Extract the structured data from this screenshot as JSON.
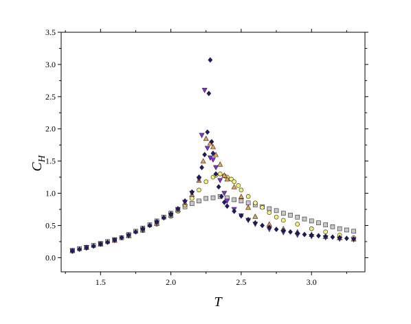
{
  "chart_data": {
    "type": "scatter",
    "title": "",
    "xlabel": "T",
    "ylabel_main": "C",
    "ylabel_sub": "H",
    "xlim": [
      1.22,
      3.38
    ],
    "ylim": [
      -0.22,
      3.5
    ],
    "xticks": [
      1.5,
      2.0,
      2.5,
      3.0
    ],
    "xtick_labels": [
      "1.5",
      "2.0",
      "2.5",
      "3.0"
    ],
    "yticks": [
      0.0,
      0.5,
      1.0,
      1.5,
      2.0,
      2.5,
      3.0,
      3.5
    ],
    "ytick_labels": [
      "0.0",
      "0.5",
      "1.0",
      "1.5",
      "2.0",
      "2.5",
      "3.0",
      "3.5"
    ],
    "grid": false,
    "legend": "none",
    "series": [
      {
        "marker": "square",
        "color": "#c8c8c8",
        "x": [
          1.3,
          1.35,
          1.4,
          1.45,
          1.5,
          1.55,
          1.6,
          1.65,
          1.7,
          1.75,
          1.8,
          1.85,
          1.9,
          1.95,
          2.0,
          2.05,
          2.1,
          2.15,
          2.2,
          2.25,
          2.3,
          2.35,
          2.4,
          2.45,
          2.5,
          2.55,
          2.6,
          2.65,
          2.7,
          2.75,
          2.8,
          2.85,
          2.9,
          2.95,
          3.0,
          3.05,
          3.1,
          3.15,
          3.2,
          3.25,
          3.3
        ],
        "y": [
          0.11,
          0.14,
          0.16,
          0.19,
          0.22,
          0.25,
          0.28,
          0.31,
          0.36,
          0.41,
          0.46,
          0.51,
          0.57,
          0.63,
          0.69,
          0.74,
          0.79,
          0.84,
          0.88,
          0.92,
          0.93,
          0.95,
          0.93,
          0.9,
          0.88,
          0.85,
          0.82,
          0.79,
          0.76,
          0.73,
          0.69,
          0.66,
          0.63,
          0.6,
          0.57,
          0.54,
          0.51,
          0.48,
          0.45,
          0.43,
          0.41
        ]
      },
      {
        "marker": "circle",
        "color": "#f6f07a",
        "x": [
          1.3,
          1.4,
          1.5,
          1.6,
          1.7,
          1.8,
          1.9,
          2.0,
          2.05,
          2.1,
          2.15,
          2.2,
          2.25,
          2.3,
          2.32,
          2.35,
          2.38,
          2.4,
          2.43,
          2.45,
          2.48,
          2.5,
          2.55,
          2.6,
          2.65,
          2.7,
          2.75,
          2.8,
          2.9,
          3.0,
          3.1,
          3.2,
          3.3
        ],
        "y": [
          0.11,
          0.16,
          0.21,
          0.27,
          0.34,
          0.42,
          0.52,
          0.64,
          0.72,
          0.82,
          0.92,
          1.05,
          1.18,
          1.25,
          1.28,
          1.3,
          1.27,
          1.25,
          1.22,
          1.18,
          1.12,
          1.05,
          0.95,
          0.85,
          0.78,
          0.7,
          0.63,
          0.58,
          0.52,
          0.45,
          0.4,
          0.35,
          0.31
        ]
      },
      {
        "marker": "triangle-up",
        "color": "#f0a050",
        "x": [
          1.3,
          1.4,
          1.5,
          1.6,
          1.7,
          1.8,
          1.9,
          2.0,
          2.05,
          2.1,
          2.15,
          2.2,
          2.23,
          2.25,
          2.28,
          2.3,
          2.32,
          2.35,
          2.38,
          2.4,
          2.45,
          2.5,
          2.55,
          2.6,
          2.7,
          2.8,
          2.9,
          3.0,
          3.1,
          3.2,
          3.3
        ],
        "y": [
          0.11,
          0.16,
          0.21,
          0.27,
          0.34,
          0.43,
          0.53,
          0.66,
          0.74,
          0.85,
          0.98,
          1.2,
          1.5,
          1.85,
          1.78,
          1.72,
          1.6,
          1.45,
          1.28,
          1.22,
          1.1,
          0.95,
          0.78,
          0.64,
          0.52,
          0.45,
          0.4,
          0.36,
          0.33,
          0.31,
          0.29
        ]
      },
      {
        "marker": "triangle-down",
        "color": "#8a2be2",
        "x": [
          1.3,
          1.4,
          1.5,
          1.6,
          1.7,
          1.8,
          1.9,
          2.0,
          2.05,
          2.1,
          2.15,
          2.2,
          2.22,
          2.24,
          2.26,
          2.28,
          2.3,
          2.32,
          2.35,
          2.38,
          2.4,
          2.45,
          2.5,
          2.55,
          2.6,
          2.7,
          2.8,
          2.9,
          3.0,
          3.1,
          3.2,
          3.3
        ],
        "y": [
          0.11,
          0.16,
          0.21,
          0.27,
          0.34,
          0.43,
          0.54,
          0.66,
          0.75,
          0.86,
          1.0,
          1.22,
          1.9,
          2.6,
          1.7,
          1.55,
          1.52,
          1.4,
          1.2,
          1.0,
          0.88,
          0.75,
          0.65,
          0.58,
          0.52,
          0.44,
          0.39,
          0.35,
          0.33,
          0.31,
          0.29,
          0.28
        ]
      },
      {
        "marker": "diamond",
        "color": "#1a1a6e",
        "x": [
          1.3,
          1.35,
          1.4,
          1.45,
          1.5,
          1.55,
          1.6,
          1.65,
          1.7,
          1.75,
          1.8,
          1.85,
          1.9,
          1.95,
          2.0,
          2.05,
          2.1,
          2.15,
          2.2,
          2.22,
          2.24,
          2.26,
          2.27,
          2.28,
          2.29,
          2.3,
          2.32,
          2.34,
          2.36,
          2.38,
          2.4,
          2.45,
          2.5,
          2.55,
          2.6,
          2.65,
          2.7,
          2.75,
          2.8,
          2.85,
          2.9,
          2.95,
          3.0,
          3.05,
          3.1,
          3.15,
          3.2,
          3.25,
          3.3
        ],
        "y": [
          0.1,
          0.13,
          0.15,
          0.18,
          0.21,
          0.24,
          0.27,
          0.31,
          0.35,
          0.4,
          0.45,
          0.5,
          0.56,
          0.62,
          0.68,
          0.76,
          0.88,
          1.02,
          1.25,
          1.4,
          1.6,
          1.95,
          2.55,
          3.07,
          1.8,
          1.62,
          1.3,
          1.1,
          0.95,
          0.86,
          0.8,
          0.72,
          0.65,
          0.59,
          0.54,
          0.5,
          0.47,
          0.44,
          0.42,
          0.4,
          0.38,
          0.36,
          0.35,
          0.34,
          0.33,
          0.32,
          0.31,
          0.3,
          0.29
        ]
      }
    ]
  }
}
